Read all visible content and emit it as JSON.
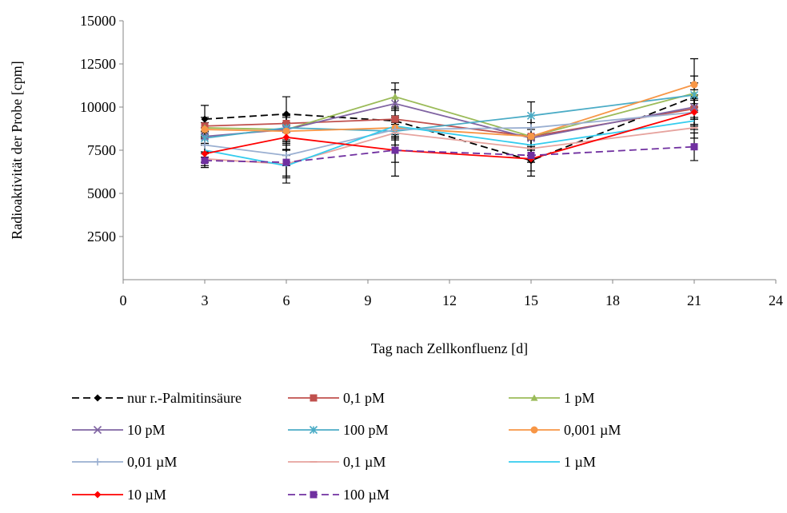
{
  "chart_data": {
    "type": "line",
    "title": "",
    "xlabel": "Tag nach Zellkonfluenz [d]",
    "ylabel": "Radioaktivität der Probe [cpm]",
    "xlim": [
      0,
      24
    ],
    "ylim": [
      0,
      15000
    ],
    "x_ticks": [
      "0",
      "3",
      "6",
      "9",
      "12",
      "15",
      "18",
      "21",
      "24"
    ],
    "y_ticks": [
      "2500",
      "5000",
      "7500",
      "10000",
      "12500",
      "15000"
    ],
    "grid": false,
    "legend_position": "bottom",
    "x": [
      3,
      6,
      10,
      15,
      21
    ],
    "series": [
      {
        "name": "nur r.-Palmitinsäure",
        "color": "#000000",
        "dash": "dashed",
        "marker": "diamond",
        "values": [
          9300,
          9600,
          9200,
          6900,
          10600
        ],
        "err": [
          800,
          1000,
          800,
          900,
          400
        ]
      },
      {
        "name": "0,1 pM",
        "color": "#c0504d",
        "dash": "solid",
        "marker": "square",
        "values": [
          8900,
          9050,
          9300,
          8300,
          9900
        ],
        "err": [
          500,
          500,
          600,
          500,
          600
        ]
      },
      {
        "name": "1 pM",
        "color": "#9bbb59",
        "dash": "solid",
        "marker": "triangle",
        "values": [
          8800,
          8700,
          10600,
          8300,
          10800
        ],
        "err": [
          600,
          800,
          800,
          800,
          1000
        ]
      },
      {
        "name": "10 pM",
        "color": "#8064a2",
        "dash": "solid",
        "marker": "x",
        "values": [
          8300,
          8700,
          10200,
          8200,
          10000
        ],
        "err": [
          500,
          700,
          800,
          600,
          700
        ]
      },
      {
        "name": "100 pM",
        "color": "#4bacc6",
        "dash": "solid",
        "marker": "star",
        "values": [
          8200,
          8800,
          8600,
          9500,
          10700
        ],
        "err": [
          400,
          800,
          500,
          800,
          700
        ]
      },
      {
        "name": "0,001 µM",
        "color": "#f79646",
        "dash": "solid",
        "marker": "circle",
        "values": [
          8700,
          8600,
          8800,
          8300,
          11300
        ],
        "err": [
          400,
          500,
          600,
          500,
          1500
        ]
      },
      {
        "name": "0,01 µM",
        "color": "#9aafd1",
        "dash": "solid",
        "marker": "plus",
        "values": [
          7800,
          7200,
          8700,
          8800,
          9700
        ],
        "err": [
          400,
          600,
          600,
          700,
          800
        ]
      },
      {
        "name": "0,1 µM",
        "color": "#e6a39e",
        "dash": "solid",
        "marker": "dash",
        "values": [
          7000,
          6700,
          8500,
          7600,
          8800
        ],
        "err": [
          400,
          800,
          700,
          600,
          600
        ]
      },
      {
        "name": "1 µM",
        "color": "#33ccee",
        "dash": "solid",
        "marker": "none",
        "values": [
          7500,
          6600,
          8900,
          7800,
          9200
        ],
        "err": [
          400,
          600,
          600,
          600,
          500
        ]
      },
      {
        "name": "10 µM",
        "color": "#ff0000",
        "dash": "solid",
        "marker": "diamond",
        "values": [
          7300,
          8250,
          7500,
          7000,
          9700
        ],
        "err": [
          500,
          700,
          1500,
          700,
          700
        ]
      },
      {
        "name": "100 µM",
        "color": "#7030a0",
        "dash": "dashed",
        "marker": "square",
        "values": [
          6900,
          6800,
          7500,
          7200,
          7700
        ],
        "err": [
          400,
          1200,
          700,
          400,
          800
        ]
      }
    ]
  }
}
